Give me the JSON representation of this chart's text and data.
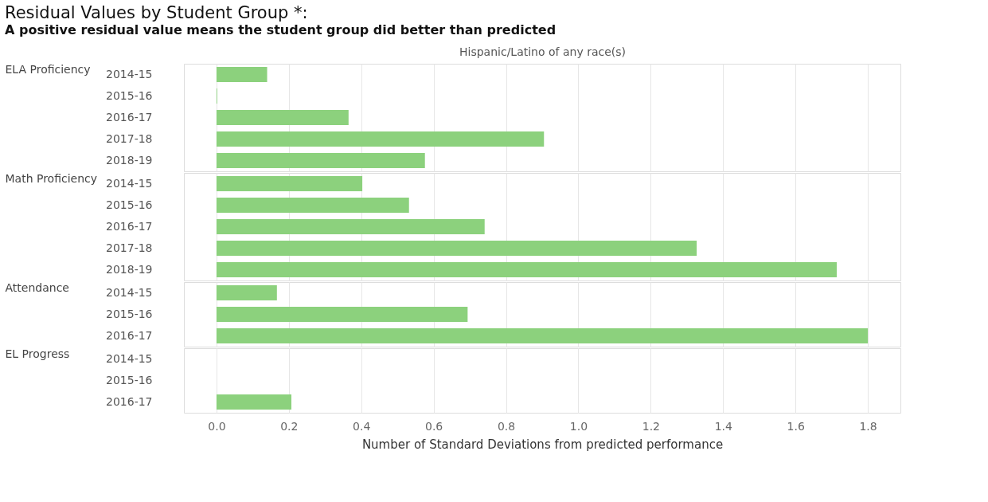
{
  "chart_data": [
    {
      "type": "bar",
      "orientation": "horizontal",
      "title": "Residual Values by Student Group *:",
      "subtitle": "A positive residual value means the student group did better than predicted",
      "x2label": "Hispanic/Latino of any race(s)",
      "ylabel": "ELA Proficiency",
      "categories": [
        "2014-15",
        "2015-16",
        "2016-17",
        "2017-18",
        "2018-19"
      ],
      "values": [
        0.14,
        0.002,
        0.365,
        0.905,
        0.576
      ],
      "color": "#8cd17d",
      "xlim": [
        -0.09,
        1.89
      ],
      "tick_labels": "y",
      "grid": "x"
    },
    {
      "type": "bar",
      "orientation": "horizontal",
      "ylabel": "Math Proficiency",
      "categories": [
        "2014-15",
        "2015-16",
        "2016-17",
        "2017-18",
        "2018-19"
      ],
      "values": [
        0.403,
        0.532,
        0.741,
        1.327,
        1.714
      ],
      "color": "#8cd17d",
      "xlim": [
        -0.09,
        1.89
      ],
      "tick_labels": "y",
      "grid": "x"
    },
    {
      "type": "bar",
      "orientation": "horizontal",
      "ylabel": "Attendance",
      "categories": [
        "2014-15",
        "2015-16",
        "2016-17"
      ],
      "values": [
        0.167,
        0.694,
        1.8
      ],
      "color": "#8cd17d",
      "xlim": [
        -0.09,
        1.89
      ],
      "tick_labels": "y",
      "grid": "x"
    },
    {
      "type": "bar",
      "orientation": "horizontal",
      "ylabel": "EL Progress",
      "xlabel": "Number of Standard Deviations from predicted performance",
      "categories": [
        "2014-15",
        "2015-16",
        "2016-17"
      ],
      "values": [
        null,
        null,
        0.207
      ],
      "color": "#8cd17d",
      "xlim": [
        -0.09,
        1.89
      ],
      "xticks": [
        {
          "value": 0,
          "label": "0.0"
        },
        0.2,
        0.4,
        0.6,
        0.8,
        {
          "value": 1,
          "label": "1.0"
        },
        1.2,
        1.4,
        1.6,
        1.8
      ],
      "grid": "x"
    }
  ]
}
